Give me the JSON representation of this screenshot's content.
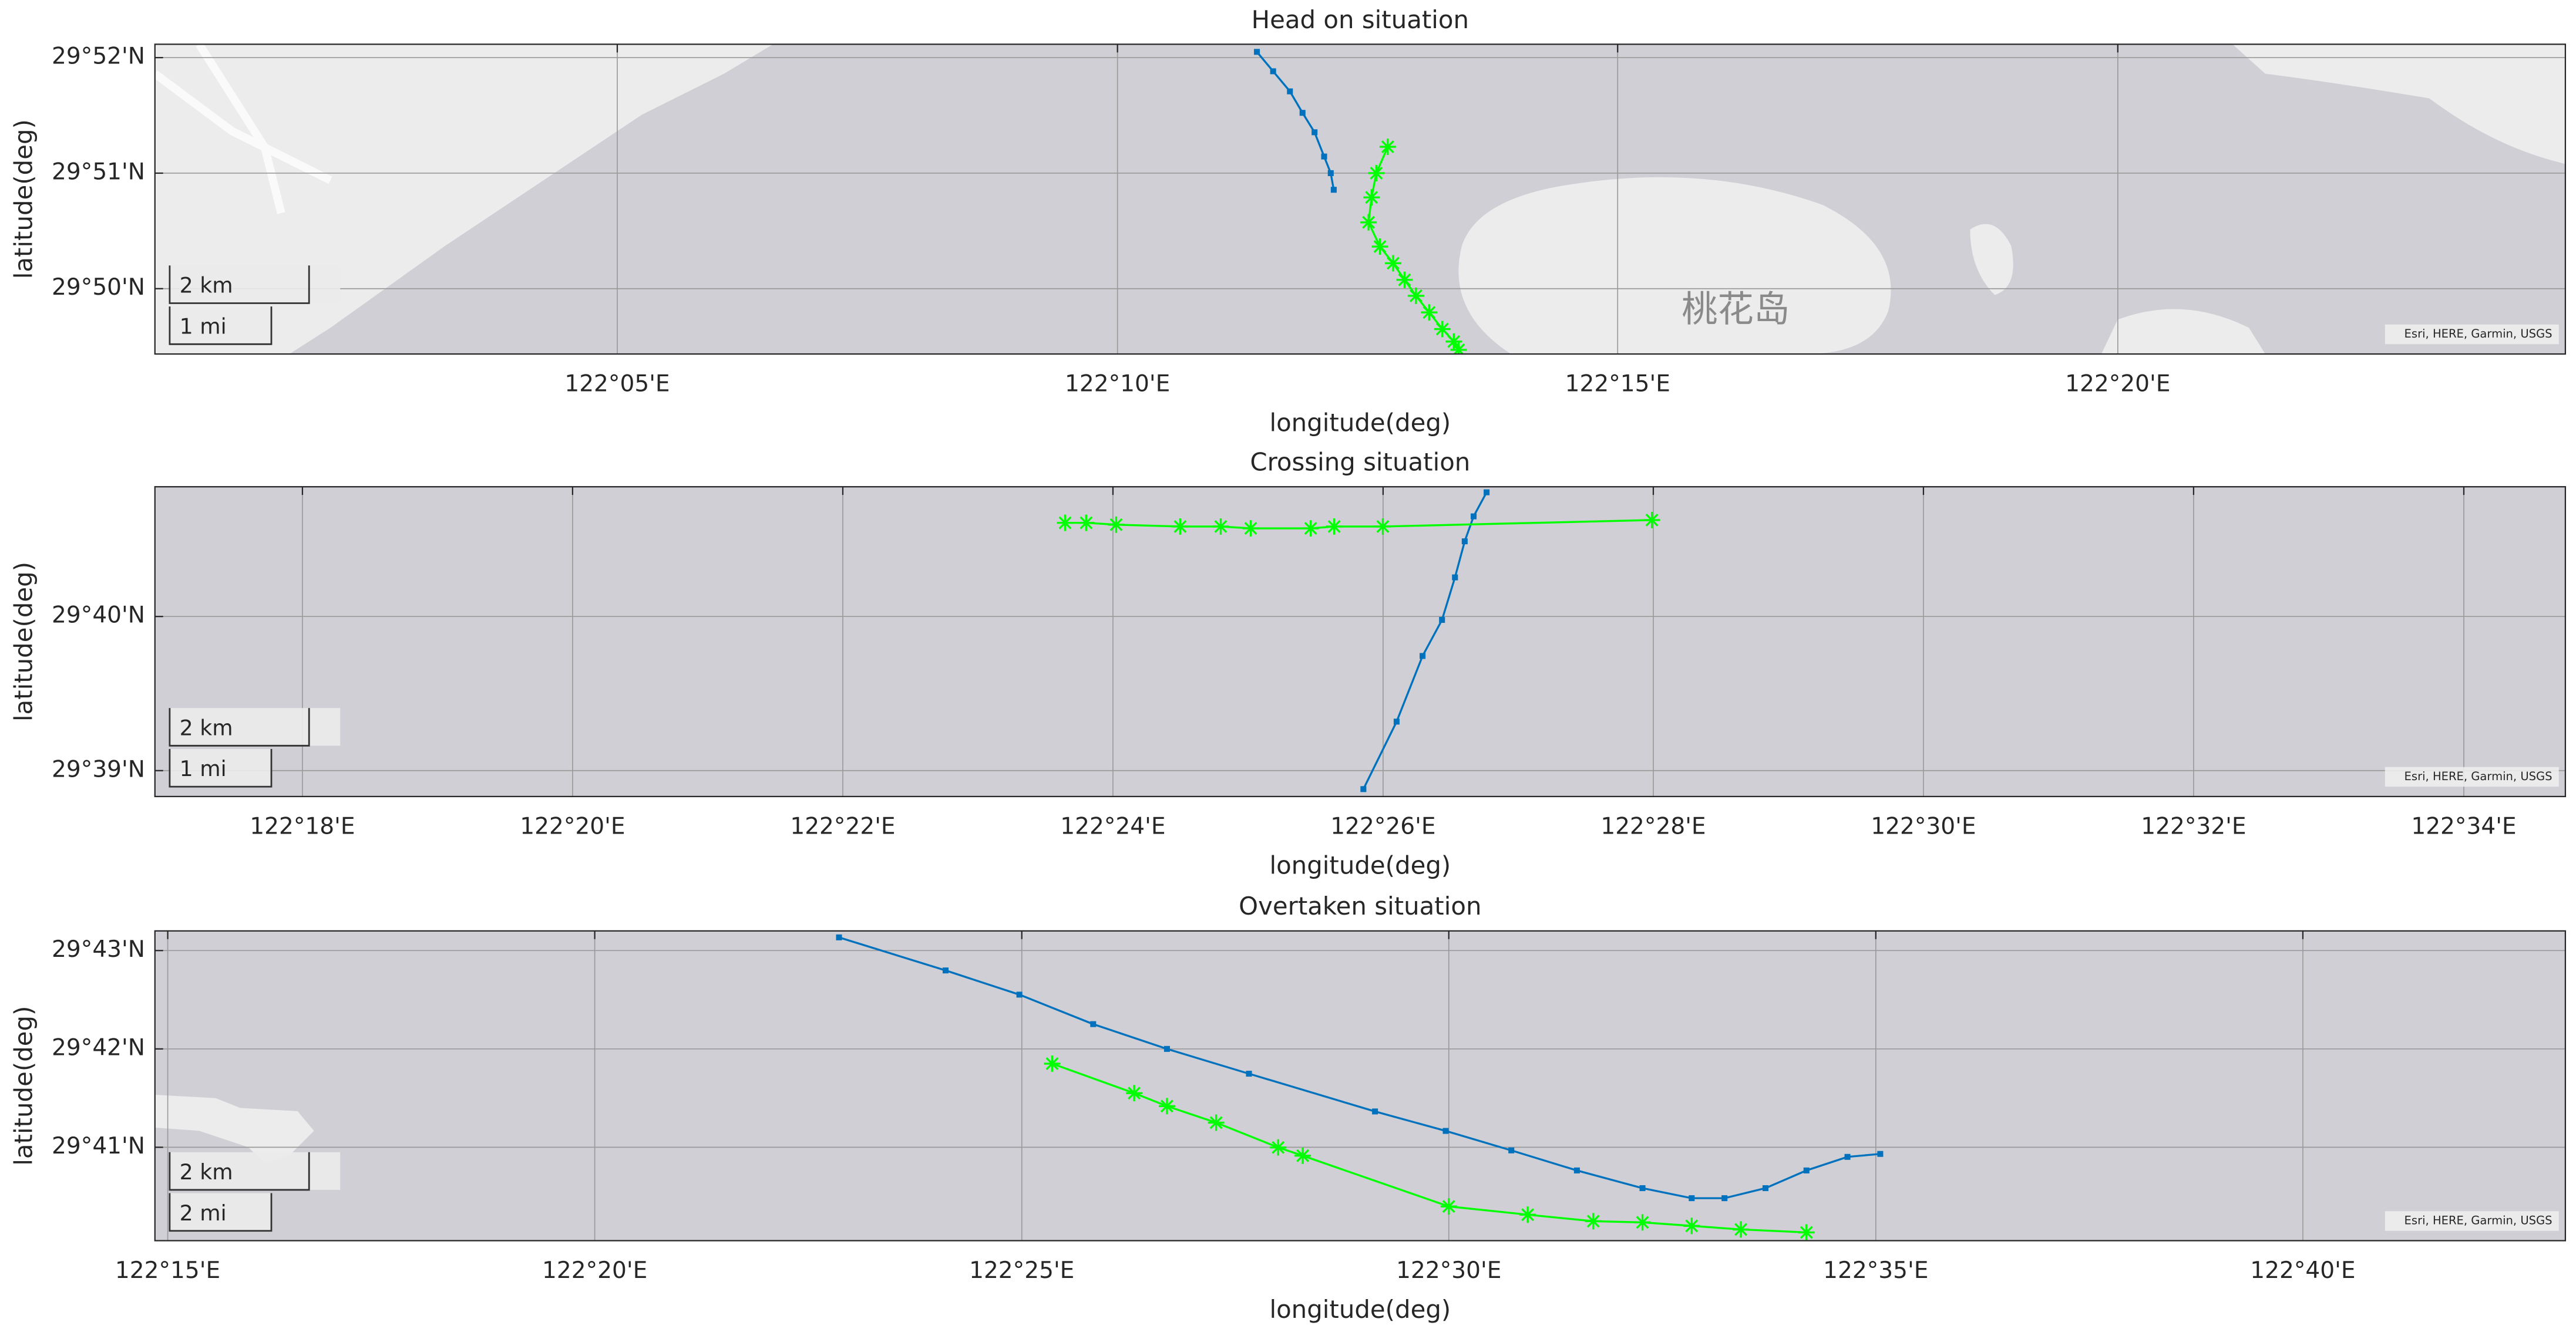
{
  "chart_data": [
    {
      "type": "line",
      "title": "Head on situation",
      "xlabel": "longitude(deg)",
      "ylabel": "latitude(deg)",
      "xlim": [
        122.0063,
        122.4079
      ],
      "ylim": [
        29.8239,
        29.8686
      ],
      "grid": true,
      "xticks": [
        {
          "value": 122.08333,
          "label": "122°05'E"
        },
        {
          "value": 122.16667,
          "label": "122°10'E"
        },
        {
          "value": 122.25,
          "label": "122°15'E"
        },
        {
          "value": 122.33333,
          "label": "122°20'E"
        }
      ],
      "yticks": [
        {
          "value": 29.83333,
          "label": "29°50'N"
        },
        {
          "value": 29.85,
          "label": "29°51'N"
        },
        {
          "value": 29.86667,
          "label": "29°52'N"
        }
      ],
      "scalebar": [
        "2 km",
        "1 mi"
      ],
      "attribution": "Esri, HERE, Garmin, USGS",
      "annotations": [
        "桃花岛"
      ],
      "series": [
        {
          "color": "#0072bd",
          "marker": "square",
          "x": [
            122.1899,
            122.1926,
            122.1954,
            122.1975,
            122.1995,
            122.2011,
            122.2022,
            122.2027
          ],
          "values": [
            29.8675,
            29.8647,
            29.8618,
            29.8587,
            29.8559,
            29.8524,
            29.85,
            29.8476
          ]
        },
        {
          "color": "#00ff00",
          "marker": "asterisk",
          "x": [
            122.2117,
            122.2098,
            122.209,
            122.2085,
            122.2104,
            122.2126,
            122.2145,
            122.2164,
            122.2186,
            122.2208,
            122.2227,
            122.2235
          ],
          "values": [
            29.8538,
            29.85,
            29.8465,
            29.8429,
            29.8394,
            29.837,
            29.8346,
            29.8323,
            29.8299,
            29.8275,
            29.8257,
            29.8245
          ]
        }
      ]
    },
    {
      "type": "line",
      "title": "Crossing situation",
      "xlabel": "longitude(deg)",
      "ylabel": "latitude(deg)",
      "xlim": [
        122.2818,
        122.5792
      ],
      "ylim": [
        29.6472,
        29.6807
      ],
      "grid": true,
      "xticks": [
        {
          "value": 122.3,
          "label": "122°18'E"
        },
        {
          "value": 122.33333,
          "label": "122°20'E"
        },
        {
          "value": 122.36667,
          "label": "122°22'E"
        },
        {
          "value": 122.4,
          "label": "122°24'E"
        },
        {
          "value": 122.43333,
          "label": "122°26'E"
        },
        {
          "value": 122.46667,
          "label": "122°28'E"
        },
        {
          "value": 122.5,
          "label": "122°30'E"
        },
        {
          "value": 122.53333,
          "label": "122°32'E"
        },
        {
          "value": 122.56667,
          "label": "122°34'E"
        }
      ],
      "yticks": [
        {
          "value": 29.65,
          "label": "29°39'N"
        },
        {
          "value": 29.66667,
          "label": "29°40'N"
        }
      ],
      "scalebar": [
        "2 km",
        "1 mi"
      ],
      "attribution": "Esri, HERE, Garmin, USGS",
      "series": [
        {
          "color": "#0072bd",
          "marker": "square",
          "x": [
            122.4309,
            122.435,
            122.4382,
            122.4406,
            122.4422,
            122.4434,
            122.4445,
            122.4461
          ],
          "values": [
            29.648,
            29.6553,
            29.6624,
            29.6663,
            29.6709,
            29.6748,
            29.6775,
            29.6801
          ]
        },
        {
          "color": "#00ff00",
          "marker": "asterisk",
          "x": [
            122.3941,
            122.3967,
            122.4004,
            122.4083,
            122.4133,
            122.417,
            122.4244,
            122.4273,
            122.4333,
            122.4665
          ],
          "values": [
            29.6768,
            29.6768,
            29.6766,
            29.6764,
            29.6764,
            29.6762,
            29.6762,
            29.6764,
            29.6764,
            29.6771
          ]
        }
      ]
    },
    {
      "type": "line",
      "title": "Overtaken situation",
      "xlabel": "longitude(deg)",
      "ylabel": "latitude(deg)",
      "xlim": [
        122.2475,
        122.7179
      ],
      "ylim": [
        29.6675,
        29.72
      ],
      "grid": true,
      "xticks": [
        {
          "value": 122.25,
          "label": "122°15'E"
        },
        {
          "value": 122.33333,
          "label": "122°20'E"
        },
        {
          "value": 122.41667,
          "label": "122°25'E"
        },
        {
          "value": 122.5,
          "label": "122°30'E"
        },
        {
          "value": 122.58333,
          "label": "122°35'E"
        },
        {
          "value": 122.66667,
          "label": "122°40'E"
        }
      ],
      "yticks": [
        {
          "value": 29.68333,
          "label": "29°41'N"
        },
        {
          "value": 29.7,
          "label": "29°42'N"
        },
        {
          "value": 29.71667,
          "label": "29°43'N"
        }
      ],
      "scalebar": [
        "2 km",
        "2 mi"
      ],
      "attribution": "Esri, HERE, Garmin, USGS",
      "series": [
        {
          "color": "#0072bd",
          "marker": "square",
          "x": [
            122.381,
            122.4018,
            122.4162,
            122.4306,
            122.445,
            122.461,
            122.4856,
            122.4994,
            122.5122,
            122.525,
            122.5378,
            122.5474,
            122.5538,
            122.5618,
            122.5698,
            122.5778,
            122.5842
          ],
          "values": [
            29.7189,
            29.7133,
            29.7092,
            29.7042,
            29.7,
            29.6958,
            29.6894,
            29.6861,
            29.6828,
            29.6794,
            29.6764,
            29.6747,
            29.6747,
            29.6764,
            29.6794,
            29.6817,
            29.6822
          ]
        },
        {
          "color": "#00ff00",
          "marker": "asterisk",
          "x": [
            122.4226,
            122.4386,
            122.445,
            122.4546,
            122.4667,
            122.4715,
            122.5,
            122.5154,
            122.5282,
            122.5378,
            122.5474,
            122.557,
            122.5698
          ],
          "values": [
            29.6975,
            29.6925,
            29.6903,
            29.6875,
            29.6833,
            29.6819,
            29.6733,
            29.6719,
            29.6708,
            29.6706,
            29.67,
            29.6694,
            29.6689
          ]
        }
      ]
    }
  ]
}
